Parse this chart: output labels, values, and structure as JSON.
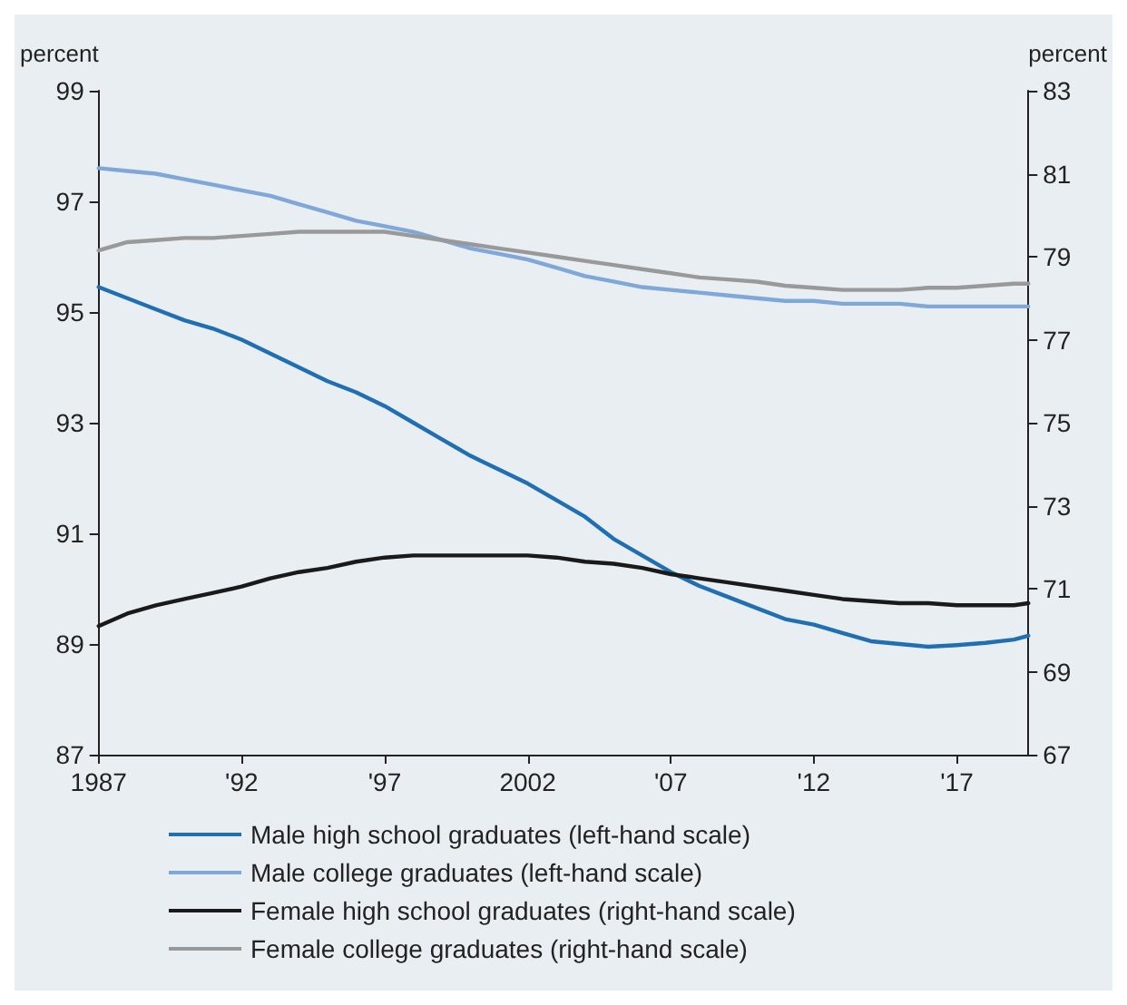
{
  "chart_data": {
    "type": "line",
    "ylabel": "percent",
    "y2label": "percent",
    "x": [
      1987,
      1988,
      1989,
      1990,
      1991,
      1992,
      1993,
      1994,
      1995,
      1996,
      1997,
      1998,
      1999,
      2000,
      2001,
      2002,
      2003,
      2004,
      2005,
      2006,
      2007,
      2008,
      2009,
      2010,
      2011,
      2012,
      2013,
      2014,
      2015,
      2016,
      2017,
      2018,
      2019,
      2019.5
    ],
    "xlim": [
      1987,
      2019.5
    ],
    "xticks": [
      {
        "value": 1987,
        "label": "1987"
      },
      {
        "value": 1992,
        "label": "'92"
      },
      {
        "value": 1997,
        "label": "'97"
      },
      {
        "value": 2002,
        "label": "2002"
      },
      {
        "value": 2007,
        "label": "'07"
      },
      {
        "value": 2012,
        "label": "'12"
      },
      {
        "value": 2017,
        "label": "'17"
      }
    ],
    "ylim": [
      87,
      99
    ],
    "yticks": [
      87,
      89,
      91,
      93,
      95,
      97,
      99
    ],
    "y2lim": [
      67,
      83
    ],
    "y2ticks": [
      67,
      69,
      71,
      73,
      75,
      77,
      79,
      81,
      83
    ],
    "grid": false,
    "legend": "bottom",
    "marker": "none",
    "line_style": "solid",
    "series": [
      {
        "name": "Male high school graduates (left-hand scale)",
        "color": "#1f6fb2",
        "values": [
          95.45,
          95.25,
          95.05,
          94.85,
          94.7,
          94.5,
          94.25,
          94.0,
          93.75,
          93.55,
          93.3,
          93.0,
          92.7,
          92.4,
          92.15,
          91.9,
          91.6,
          91.3,
          90.9,
          90.6,
          90.3,
          90.05,
          89.85,
          89.65,
          89.45,
          89.35,
          89.2,
          89.05,
          89.0,
          88.95,
          88.98,
          89.02,
          89.08,
          89.15
        ]
      },
      {
        "name": "Male college graduates (left-hand scale)",
        "color": "#7fa8d8",
        "values": [
          97.6,
          97.55,
          97.5,
          97.4,
          97.3,
          97.2,
          97.1,
          96.95,
          96.8,
          96.65,
          96.55,
          96.45,
          96.3,
          96.15,
          96.05,
          95.95,
          95.8,
          95.65,
          95.55,
          95.45,
          95.4,
          95.35,
          95.3,
          95.25,
          95.2,
          95.2,
          95.15,
          95.15,
          95.15,
          95.1,
          95.1,
          95.1,
          95.1,
          95.1
        ]
      },
      {
        "name": "Female high school graduates (right-hand scale)",
        "color": "#1a1a1a",
        "axis": "y2",
        "values": [
          70.1,
          70.4,
          70.6,
          70.75,
          70.9,
          71.05,
          71.25,
          71.4,
          71.5,
          71.65,
          71.75,
          71.8,
          71.8,
          71.8,
          71.8,
          71.8,
          71.75,
          71.65,
          71.6,
          71.5,
          71.35,
          71.25,
          71.15,
          71.05,
          70.95,
          70.85,
          70.75,
          70.7,
          70.65,
          70.65,
          70.6,
          70.6,
          70.6,
          70.65
        ]
      },
      {
        "name": "Female college graduates (right-hand scale)",
        "color": "#999999",
        "axis": "y2",
        "values": [
          79.15,
          79.35,
          79.4,
          79.45,
          79.45,
          79.5,
          79.55,
          79.6,
          79.6,
          79.6,
          79.6,
          79.5,
          79.4,
          79.3,
          79.2,
          79.1,
          79.0,
          78.9,
          78.8,
          78.7,
          78.6,
          78.5,
          78.45,
          78.4,
          78.3,
          78.25,
          78.2,
          78.2,
          78.2,
          78.25,
          78.25,
          78.3,
          78.35,
          78.35
        ]
      }
    ]
  }
}
